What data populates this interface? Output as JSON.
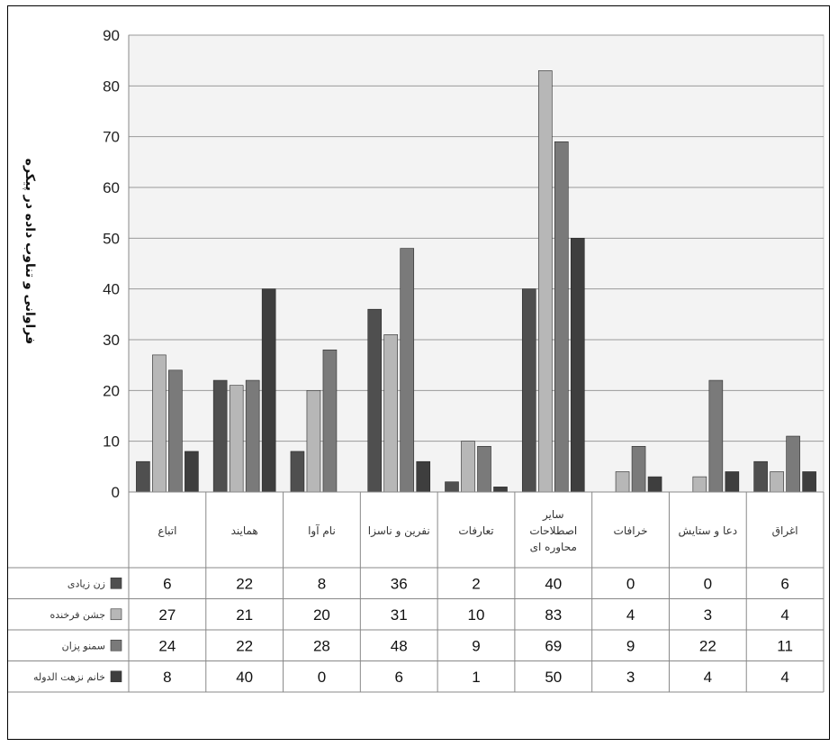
{
  "chart_data": {
    "type": "bar",
    "ylabel": "فراوانی و تناوب داده در پیکره",
    "ylim": [
      0,
      90
    ],
    "yticks": [
      0,
      10,
      20,
      30,
      40,
      50,
      60,
      70,
      80,
      90
    ],
    "grid": true,
    "legend": "data-table",
    "categories": [
      "اتباع",
      "همایند",
      "نام آوا",
      "نفرین و ناسزا",
      "تعارفات",
      "سایر اصطلاحات محاوره ای",
      "خرافات",
      "دعا و ستایش",
      "اغراق"
    ],
    "series": [
      {
        "name": "زن زیادی",
        "color": "#4f4f4f",
        "values": [
          6,
          22,
          8,
          36,
          2,
          40,
          0,
          0,
          6
        ]
      },
      {
        "name": "جشن فرخنده",
        "color": "#b7b7b7",
        "values": [
          27,
          21,
          20,
          31,
          10,
          83,
          4,
          3,
          4
        ]
      },
      {
        "name": "سمنو پزان",
        "color": "#7a7a7a",
        "values": [
          24,
          22,
          28,
          48,
          9,
          69,
          9,
          22,
          11
        ]
      },
      {
        "name": "خانم نزهت الدوله",
        "color": "#3e3e3e",
        "values": [
          8,
          40,
          0,
          6,
          1,
          50,
          3,
          4,
          4
        ]
      }
    ]
  }
}
